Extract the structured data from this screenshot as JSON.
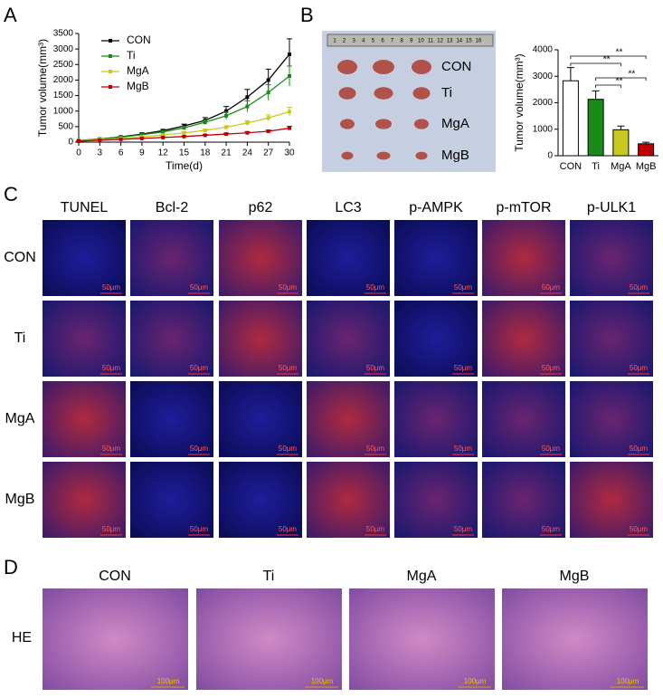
{
  "chart_data": [
    {
      "type": "line",
      "xlabel": "Time(d)",
      "ylabel": "Tumor volume(mm³)",
      "x": [
        0,
        3,
        6,
        9,
        12,
        15,
        18,
        21,
        24,
        27,
        30
      ],
      "xlim": [
        0,
        30
      ],
      "xticks": [
        0,
        3,
        6,
        9,
        12,
        15,
        18,
        21,
        24,
        27,
        30
      ],
      "ylim": [
        0,
        3500
      ],
      "yticks": [
        0,
        500,
        1000,
        1500,
        2000,
        2500,
        3000,
        3500
      ],
      "legend": "upper left",
      "series": [
        {
          "name": "CON",
          "color": "#000000",
          "values": [
            50,
            100,
            170,
            260,
            370,
            520,
            700,
            1000,
            1450,
            2000,
            2830
          ],
          "errors": [
            10,
            15,
            20,
            30,
            40,
            60,
            90,
            150,
            250,
            350,
            500
          ]
        },
        {
          "name": "Ti",
          "color": "#1a8a1a",
          "values": [
            50,
            100,
            160,
            240,
            330,
            460,
            640,
            850,
            1150,
            1600,
            2130
          ],
          "errors": [
            10,
            15,
            20,
            30,
            40,
            55,
            80,
            120,
            180,
            250,
            320
          ]
        },
        {
          "name": "MgA",
          "color": "#c8c81e",
          "values": [
            40,
            80,
            120,
            170,
            230,
            300,
            380,
            480,
            620,
            780,
            980
          ],
          "errors": [
            8,
            10,
            15,
            20,
            25,
            30,
            40,
            50,
            70,
            100,
            140
          ]
        },
        {
          "name": "MgB",
          "color": "#c00000",
          "values": [
            30,
            60,
            90,
            120,
            150,
            180,
            220,
            260,
            300,
            350,
            450
          ],
          "errors": [
            5,
            8,
            10,
            12,
            15,
            20,
            25,
            30,
            35,
            40,
            60
          ]
        }
      ]
    },
    {
      "type": "bar",
      "ylabel": "Tumor volume(mm³)",
      "categories": [
        "CON",
        "Ti",
        "MgA",
        "MgB"
      ],
      "values": [
        2830,
        2130,
        980,
        450
      ],
      "errors": [
        500,
        320,
        140,
        60
      ],
      "colors": [
        "#ffffff",
        "#1a8a1a",
        "#c8c81e",
        "#c00000"
      ],
      "ylim": [
        0,
        4000
      ],
      "yticks": [
        0,
        1000,
        2000,
        3000,
        4000
      ],
      "annotations": [
        {
          "pair": [
            "CON",
            "MgB"
          ],
          "label": "**"
        },
        {
          "pair": [
            "CON",
            "MgA"
          ],
          "label": "**"
        },
        {
          "pair": [
            "Ti",
            "MgB"
          ],
          "label": "**"
        },
        {
          "pair": [
            "Ti",
            "MgA"
          ],
          "label": "**"
        }
      ]
    }
  ],
  "panel_labels": [
    "A",
    "B",
    "C",
    "D"
  ],
  "tumor_photo": {
    "labels": [
      "CON",
      "Ti",
      "MgA",
      "MgB"
    ],
    "ruler_numbers": [
      1,
      2,
      3,
      4,
      5,
      6,
      7,
      8,
      9,
      10,
      11,
      12,
      13,
      14,
      15,
      16
    ]
  },
  "immunofluorescence": {
    "columns": [
      "TUNEL",
      "Bcl-2",
      "p62",
      "LC3",
      "p-AMPK",
      "p-mTOR",
      "p-ULK1"
    ],
    "rows": [
      "CON",
      "Ti",
      "MgA",
      "MgB"
    ],
    "scale_bar": "50μm"
  },
  "he_staining": {
    "columns": [
      "CON",
      "Ti",
      "MgA",
      "MgB"
    ],
    "row": "HE",
    "scale_bar": "100μm"
  }
}
